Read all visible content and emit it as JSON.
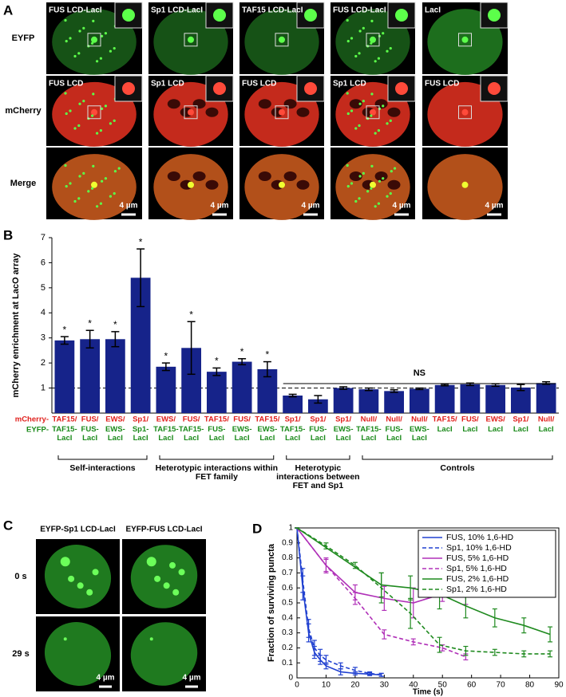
{
  "panel_a": {
    "letter": "A",
    "row_labels": [
      "EYFP",
      "mCherry",
      "Merge"
    ],
    "eyfp_labels": [
      "FUS LCD-LacI",
      "Sp1 LCD-LacI",
      "TAF15 LCD-LacI",
      "FUS LCD-LacI",
      "LacI"
    ],
    "mcherry_labels": [
      "FUS LCD",
      "Sp1 LCD",
      "FUS LCD",
      "Sp1 LCD",
      "FUS LCD"
    ],
    "scale_bar": "4 µm"
  },
  "panel_c": {
    "letter": "C",
    "column_labels": [
      "EYFP-Sp1 LCD-LacI",
      "EYFP-FUS LCD-LacI"
    ],
    "row_labels": [
      "0 s",
      "29 s"
    ],
    "scale_bar": "4 µm"
  },
  "chart_data": [
    {
      "type": "bar",
      "letter": "B",
      "ylabel": "mCherry enrichment at LacO array",
      "row_labels": [
        "mCherry-",
        "EYFP-"
      ],
      "categories": [
        "TAF15/",
        "FUS/",
        "EWS/",
        "Sp1/",
        "EWS/",
        "FUS/",
        "TAF15/",
        "FUS/",
        "TAF15/",
        "Sp1/",
        "Sp1/",
        "Sp1/",
        "Null/",
        "Null/",
        "Null/",
        "TAF15/",
        "FUS/",
        "EWS/",
        "Sp1/",
        "Null/"
      ],
      "categories_eyfp": [
        "TAF15-LacI",
        "FUS-LacI",
        "EWS-LacI",
        "Sp1-LacI",
        "TAF15-LacI",
        "TAF15-LacI",
        "FUS-LacI",
        "EWS-LacI",
        "EWS-LacI",
        "TAF15-LacI",
        "FUS-LacI",
        "EWS-LacI",
        "TAF15-LacI",
        "FUS-LacI",
        "EWS-LacI",
        "LacI",
        "LacI",
        "LacI",
        "LacI",
        "LacI"
      ],
      "values": [
        2.9,
        2.95,
        2.95,
        5.4,
        1.85,
        2.6,
        1.65,
        2.05,
        1.75,
        0.7,
        0.55,
        1.0,
        0.95,
        0.88,
        0.97,
        1.12,
        1.15,
        1.12,
        1.02,
        1.2
      ],
      "errors": [
        0.15,
        0.35,
        0.3,
        1.15,
        0.15,
        1.05,
        0.15,
        0.12,
        0.3,
        0.05,
        0.15,
        0.05,
        0.05,
        0.05,
        0.03,
        0.03,
        0.05,
        0.05,
        0.12,
        0.05
      ],
      "significance": [
        "*",
        "*",
        "*",
        "*",
        "*",
        "*",
        "*",
        "*",
        "*",
        null,
        null,
        null,
        null,
        null,
        null,
        null,
        null,
        null,
        null,
        null
      ],
      "groups": [
        "Self-interactions",
        "Heterotypic interactions within FET family",
        "Heterotypic interactions between FET and Sp1",
        "Controls"
      ],
      "ns_label": "NS",
      "reference_line": 1,
      "color": "#16238a",
      "ylim": [
        0,
        7
      ],
      "yticks": [
        1,
        2,
        3,
        4,
        5,
        6,
        7
      ]
    },
    {
      "type": "line",
      "letter": "D",
      "xlabel": "Time (s)",
      "ylabel": "Fraction of surviving puncta",
      "xlim": [
        0,
        90
      ],
      "xticks": [
        0,
        10,
        20,
        30,
        40,
        50,
        60,
        70,
        80,
        90
      ],
      "ylim": [
        0,
        1
      ],
      "yticks": [
        0,
        0.1,
        0.2,
        0.3,
        0.4,
        0.5,
        0.6,
        0.7,
        0.8,
        0.9,
        1
      ],
      "legend": "top-right",
      "series": [
        {
          "name": "FUS, 10% 1,6-HD",
          "color": "#2040d0",
          "linestyle": "solid",
          "x": [
            0,
            2,
            4,
            6,
            8,
            10,
            15,
            20,
            25,
            29
          ],
          "values": [
            1,
            0.6,
            0.3,
            0.17,
            0.12,
            0.08,
            0.04,
            0.03,
            0.025,
            0.02
          ],
          "errors": [
            0,
            0.08,
            0.06,
            0.04,
            0.03,
            0.02,
            0.02,
            0.01,
            0.01,
            0.01
          ]
        },
        {
          "name": "Sp1, 10% 1,6-HD",
          "color": "#2040d0",
          "linestyle": "dashed",
          "x": [
            0,
            2,
            4,
            6,
            8,
            10,
            15,
            20,
            25,
            29
          ],
          "values": [
            1,
            0.65,
            0.33,
            0.2,
            0.15,
            0.12,
            0.08,
            0.05,
            0.03,
            0.02
          ],
          "errors": [
            0,
            0.08,
            0.06,
            0.05,
            0.04,
            0.03,
            0.02,
            0.02,
            0.01,
            0.01
          ]
        },
        {
          "name": "FUS, 5% 1,6-HD",
          "color": "#b030b8",
          "linestyle": "solid",
          "x": [
            0,
            10,
            20,
            30,
            40,
            50,
            58
          ],
          "values": [
            1,
            0.75,
            0.57,
            0.53,
            0.5,
            0.56,
            0.54
          ],
          "errors": [
            0,
            0.05,
            0.05,
            0.08,
            0.1,
            0.05,
            0.05
          ]
        },
        {
          "name": "Sp1, 5% 1,6-HD",
          "color": "#b030b8",
          "linestyle": "dashed",
          "x": [
            0,
            10,
            20,
            30,
            40,
            50,
            58
          ],
          "values": [
            1,
            0.75,
            0.53,
            0.29,
            0.24,
            0.2,
            0.14
          ],
          "errors": [
            0,
            0.04,
            0.04,
            0.03,
            0.02,
            0.02,
            0.02
          ]
        },
        {
          "name": "FUS, 2% 1,6-HD",
          "color": "#1f8a1f",
          "linestyle": "solid",
          "x": [
            0,
            29,
            39,
            49,
            58,
            68,
            78,
            87
          ],
          "values": [
            1,
            0.62,
            0.6,
            0.56,
            0.48,
            0.4,
            0.35,
            0.29
          ],
          "errors": [
            0,
            0.08,
            0.08,
            0.1,
            0.08,
            0.06,
            0.05,
            0.05
          ]
        },
        {
          "name": "Sp1, 2% 1,6-HD",
          "color": "#1f8a1f",
          "linestyle": "dashed",
          "x": [
            0,
            10,
            20,
            29,
            39,
            49,
            58,
            68,
            78,
            87
          ],
          "values": [
            1,
            0.88,
            0.75,
            0.6,
            0.43,
            0.22,
            0.18,
            0.17,
            0.16,
            0.16
          ],
          "errors": [
            0,
            0.02,
            0.02,
            0.1,
            0.1,
            0.05,
            0.03,
            0.02,
            0.02,
            0.02
          ]
        }
      ]
    }
  ]
}
